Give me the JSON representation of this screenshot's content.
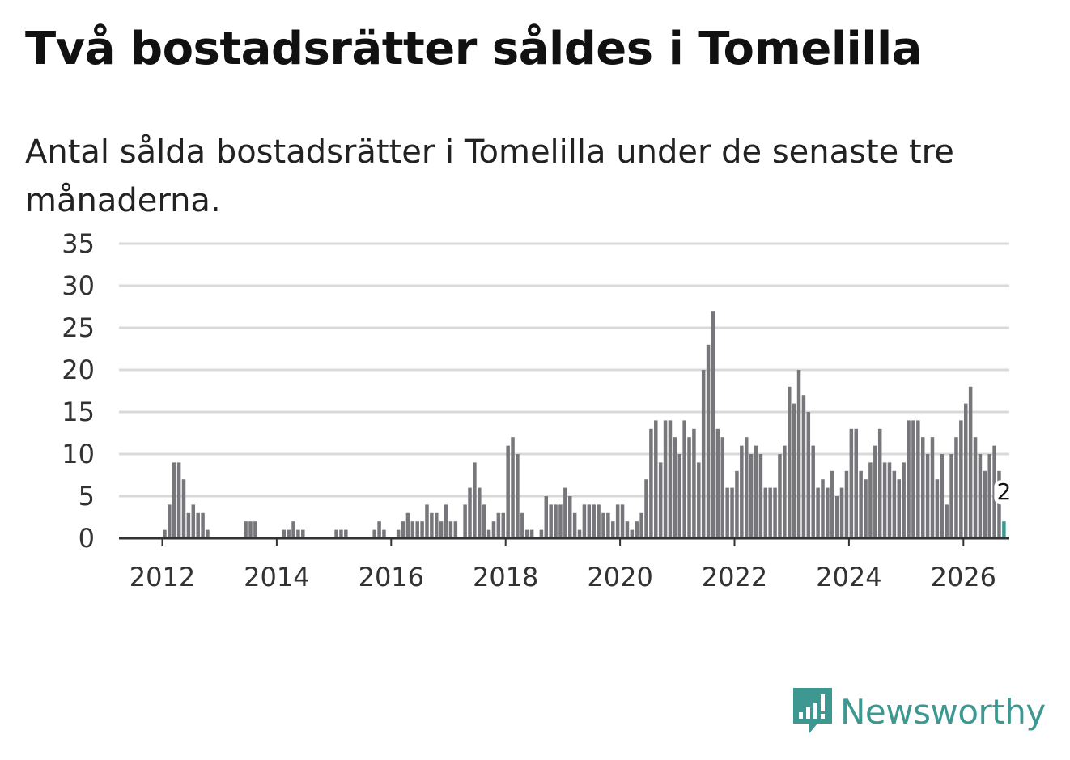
{
  "title": "Två bostadsrätter såldes i Tomelilla",
  "subtitle": "Antal sålda bostadsrätter i Tomelilla under de senaste tre månaderna.",
  "brand": {
    "name": "Newsworthy",
    "color": "#3d9892"
  },
  "colors": {
    "bar": "#77767a",
    "highlight": "#3d9892",
    "grid": "#d9d9d9",
    "axis": "#333333"
  },
  "chart_data": {
    "type": "bar",
    "title": "Två bostadsrätter såldes i Tomelilla",
    "xlabel": "",
    "ylabel": "",
    "ylim": [
      0,
      35
    ],
    "yticks": [
      0,
      5,
      10,
      15,
      20,
      25,
      30,
      35
    ],
    "xticks": [
      "2012",
      "2014",
      "2016",
      "2018",
      "2020",
      "2022",
      "2024",
      "2026"
    ],
    "start": "2011-05",
    "grid": true,
    "highlight_last": true,
    "last_label": "2",
    "values": [
      0,
      0,
      0,
      0,
      0,
      0,
      0,
      0,
      1,
      4,
      9,
      9,
      7,
      3,
      4,
      3,
      3,
      1,
      0,
      0,
      0,
      0,
      0,
      0,
      0,
      2,
      2,
      2,
      0,
      0,
      0,
      0,
      0,
      1,
      1,
      2,
      1,
      1,
      0,
      0,
      0,
      0,
      0,
      0,
      1,
      1,
      1,
      0,
      0,
      0,
      0,
      0,
      1,
      2,
      1,
      0,
      0,
      1,
      2,
      3,
      2,
      2,
      2,
      4,
      3,
      3,
      2,
      4,
      2,
      2,
      0,
      4,
      6,
      9,
      6,
      4,
      1,
      2,
      3,
      3,
      11,
      12,
      10,
      3,
      1,
      1,
      0,
      1,
      5,
      4,
      4,
      4,
      6,
      5,
      3,
      1,
      4,
      4,
      4,
      4,
      3,
      3,
      2,
      4,
      4,
      2,
      1,
      2,
      3,
      7,
      13,
      14,
      9,
      14,
      14,
      12,
      10,
      14,
      12,
      13,
      9,
      20,
      23,
      27,
      13,
      12,
      6,
      6,
      8,
      11,
      12,
      10,
      11,
      10,
      6,
      6,
      6,
      10,
      11,
      18,
      16,
      20,
      17,
      15,
      11,
      6,
      7,
      6,
      8,
      5,
      6,
      8,
      13,
      13,
      8,
      7,
      9,
      11,
      13,
      9,
      9,
      8,
      7,
      9,
      14,
      14,
      14,
      12,
      10,
      12,
      7,
      10,
      4,
      10,
      12,
      14,
      16,
      18,
      12,
      10,
      8,
      10,
      11,
      8,
      2
    ]
  }
}
